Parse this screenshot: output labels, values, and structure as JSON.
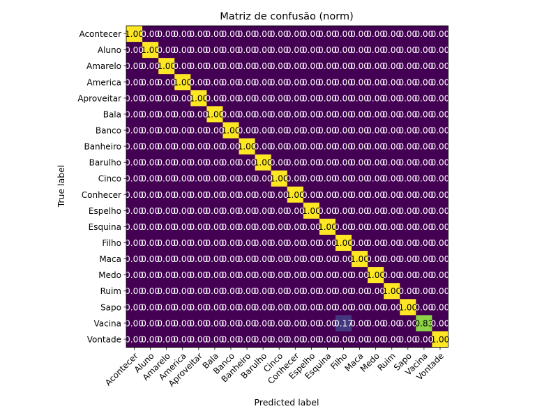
{
  "chart_data": {
    "type": "heatmap",
    "title": "Matriz de confusão (norm)",
    "xlabel": "Predicted label",
    "ylabel": "True label",
    "categories": [
      "Acontecer",
      "Aluno",
      "Amarelo",
      "America",
      "Aproveitar",
      "Bala",
      "Banco",
      "Banheiro",
      "Barulho",
      "Cinco",
      "Conhecer",
      "Espelho",
      "Esquina",
      "Filho",
      "Maca",
      "Medo",
      "Ruim",
      "Sapo",
      "Vacina",
      "Vontade"
    ],
    "value_range": [
      0,
      1
    ],
    "colormap": "viridis",
    "grid": false,
    "matrix": [
      [
        1,
        0,
        0,
        0,
        0,
        0,
        0,
        0,
        0,
        0,
        0,
        0,
        0,
        0,
        0,
        0,
        0,
        0,
        0,
        0
      ],
      [
        0,
        1,
        0,
        0,
        0,
        0,
        0,
        0,
        0,
        0,
        0,
        0,
        0,
        0,
        0,
        0,
        0,
        0,
        0,
        0
      ],
      [
        0,
        0,
        1,
        0,
        0,
        0,
        0,
        0,
        0,
        0,
        0,
        0,
        0,
        0,
        0,
        0,
        0,
        0,
        0,
        0
      ],
      [
        0,
        0,
        0,
        1,
        0,
        0,
        0,
        0,
        0,
        0,
        0,
        0,
        0,
        0,
        0,
        0,
        0,
        0,
        0,
        0
      ],
      [
        0,
        0,
        0,
        0,
        1,
        0,
        0,
        0,
        0,
        0,
        0,
        0,
        0,
        0,
        0,
        0,
        0,
        0,
        0,
        0
      ],
      [
        0,
        0,
        0,
        0,
        0,
        1,
        0,
        0,
        0,
        0,
        0,
        0,
        0,
        0,
        0,
        0,
        0,
        0,
        0,
        0
      ],
      [
        0,
        0,
        0,
        0,
        0,
        0,
        1,
        0,
        0,
        0,
        0,
        0,
        0,
        0,
        0,
        0,
        0,
        0,
        0,
        0
      ],
      [
        0,
        0,
        0,
        0,
        0,
        0,
        0,
        1,
        0,
        0,
        0,
        0,
        0,
        0,
        0,
        0,
        0,
        0,
        0,
        0
      ],
      [
        0,
        0,
        0,
        0,
        0,
        0,
        0,
        0,
        1,
        0,
        0,
        0,
        0,
        0,
        0,
        0,
        0,
        0,
        0,
        0
      ],
      [
        0,
        0,
        0,
        0,
        0,
        0,
        0,
        0,
        0,
        1,
        0,
        0,
        0,
        0,
        0,
        0,
        0,
        0,
        0,
        0
      ],
      [
        0,
        0,
        0,
        0,
        0,
        0,
        0,
        0,
        0,
        0,
        1,
        0,
        0,
        0,
        0,
        0,
        0,
        0,
        0,
        0
      ],
      [
        0,
        0,
        0,
        0,
        0,
        0,
        0,
        0,
        0,
        0,
        0,
        1,
        0,
        0,
        0,
        0,
        0,
        0,
        0,
        0
      ],
      [
        0,
        0,
        0,
        0,
        0,
        0,
        0,
        0,
        0,
        0,
        0,
        0,
        1,
        0,
        0,
        0,
        0,
        0,
        0,
        0
      ],
      [
        0,
        0,
        0,
        0,
        0,
        0,
        0,
        0,
        0,
        0,
        0,
        0,
        0,
        1,
        0,
        0,
        0,
        0,
        0,
        0
      ],
      [
        0,
        0,
        0,
        0,
        0,
        0,
        0,
        0,
        0,
        0,
        0,
        0,
        0,
        0,
        1,
        0,
        0,
        0,
        0,
        0
      ],
      [
        0,
        0,
        0,
        0,
        0,
        0,
        0,
        0,
        0,
        0,
        0,
        0,
        0,
        0,
        0,
        1,
        0,
        0,
        0,
        0
      ],
      [
        0,
        0,
        0,
        0,
        0,
        0,
        0,
        0,
        0,
        0,
        0,
        0,
        0,
        0,
        0,
        0,
        1,
        0,
        0,
        0
      ],
      [
        0,
        0,
        0,
        0,
        0,
        0,
        0,
        0,
        0,
        0,
        0,
        0,
        0,
        0,
        0,
        0,
        0,
        1,
        0,
        0
      ],
      [
        0,
        0,
        0,
        0,
        0,
        0,
        0,
        0,
        0,
        0,
        0,
        0,
        0,
        0.17,
        0,
        0,
        0,
        0,
        0.83,
        0
      ],
      [
        0,
        0,
        0,
        0,
        0,
        0,
        0,
        0,
        0,
        0,
        0,
        0,
        0,
        0,
        0,
        0,
        0,
        0,
        0,
        1
      ]
    ],
    "cell_labels": [
      [
        "1.00",
        "0.00",
        "0.00",
        "0.00",
        "0.00",
        "0.00",
        "0.00",
        "0.00",
        "0.00",
        "0.00",
        "0.00",
        "0.00",
        "0.00",
        "0.00",
        "0.00",
        "0.00",
        "0.00",
        "0.00",
        "0.00",
        "0.00"
      ],
      [
        "0.00",
        "1.00",
        "0.00",
        "0.00",
        "0.00",
        "0.00",
        "0.00",
        "0.00",
        "0.00",
        "0.00",
        "0.00",
        "0.00",
        "0.00",
        "0.00",
        "0.00",
        "0.00",
        "0.00",
        "0.00",
        "0.00",
        "0.00"
      ],
      [
        "0.00",
        "0.00",
        "1.00",
        "0.00",
        "0.00",
        "0.00",
        "0.00",
        "0.00",
        "0.00",
        "0.00",
        "0.00",
        "0.00",
        "0.00",
        "0.00",
        "0.00",
        "0.00",
        "0.00",
        "0.00",
        "0.00",
        "0.00"
      ],
      [
        "0.00",
        "0.00",
        "0.00",
        "1.00",
        "0.00",
        "0.00",
        "0.00",
        "0.00",
        "0.00",
        "0.00",
        "0.00",
        "0.00",
        "0.00",
        "0.00",
        "0.00",
        "0.00",
        "0.00",
        "0.00",
        "0.00",
        "0.00"
      ],
      [
        "0.00",
        "0.00",
        "0.00",
        "0.00",
        "1.00",
        "0.00",
        "0.00",
        "0.00",
        "0.00",
        "0.00",
        "0.00",
        "0.00",
        "0.00",
        "0.00",
        "0.00",
        "0.00",
        "0.00",
        "0.00",
        "0.00",
        "0.00"
      ],
      [
        "0.00",
        "0.00",
        "0.00",
        "0.00",
        "0.00",
        "1.00",
        "0.00",
        "0.00",
        "0.00",
        "0.00",
        "0.00",
        "0.00",
        "0.00",
        "0.00",
        "0.00",
        "0.00",
        "0.00",
        "0.00",
        "0.00",
        "0.00"
      ],
      [
        "0.00",
        "0.00",
        "0.00",
        "0.00",
        "0.00",
        "0.00",
        "1.00",
        "0.00",
        "0.00",
        "0.00",
        "0.00",
        "0.00",
        "0.00",
        "0.00",
        "0.00",
        "0.00",
        "0.00",
        "0.00",
        "0.00",
        "0.00"
      ],
      [
        "0.00",
        "0.00",
        "0.00",
        "0.00",
        "0.00",
        "0.00",
        "0.00",
        "1.00",
        "0.00",
        "0.00",
        "0.00",
        "0.00",
        "0.00",
        "0.00",
        "0.00",
        "0.00",
        "0.00",
        "0.00",
        "0.00",
        "0.00"
      ],
      [
        "0.00",
        "0.00",
        "0.00",
        "0.00",
        "0.00",
        "0.00",
        "0.00",
        "0.00",
        "1.00",
        "0.00",
        "0.00",
        "0.00",
        "0.00",
        "0.00",
        "0.00",
        "0.00",
        "0.00",
        "0.00",
        "0.00",
        "0.00"
      ],
      [
        "0.00",
        "0.00",
        "0.00",
        "0.00",
        "0.00",
        "0.00",
        "0.00",
        "0.00",
        "0.00",
        "1.00",
        "0.00",
        "0.00",
        "0.00",
        "0.00",
        "0.00",
        "0.00",
        "0.00",
        "0.00",
        "0.00",
        "0.00"
      ],
      [
        "0.00",
        "0.00",
        "0.00",
        "0.00",
        "0.00",
        "0.00",
        "0.00",
        "0.00",
        "0.00",
        "0.00",
        "1.00",
        "0.00",
        "0.00",
        "0.00",
        "0.00",
        "0.00",
        "0.00",
        "0.00",
        "0.00",
        "0.00"
      ],
      [
        "0.00",
        "0.00",
        "0.00",
        "0.00",
        "0.00",
        "0.00",
        "0.00",
        "0.00",
        "0.00",
        "0.00",
        "0.00",
        "1.00",
        "0.00",
        "0.00",
        "0.00",
        "0.00",
        "0.00",
        "0.00",
        "0.00",
        "0.00"
      ],
      [
        "0.00",
        "0.00",
        "0.00",
        "0.00",
        "0.00",
        "0.00",
        "0.00",
        "0.00",
        "0.00",
        "0.00",
        "0.00",
        "0.00",
        "1.00",
        "0.00",
        "0.00",
        "0.00",
        "0.00",
        "0.00",
        "0.00",
        "0.00"
      ],
      [
        "0.00",
        "0.00",
        "0.00",
        "0.00",
        "0.00",
        "0.00",
        "0.00",
        "0.00",
        "0.00",
        "0.00",
        "0.00",
        "0.00",
        "0.00",
        "1.00",
        "0.00",
        "0.00",
        "0.00",
        "0.00",
        "0.00",
        "0.00"
      ],
      [
        "0.00",
        "0.00",
        "0.00",
        "0.00",
        "0.00",
        "0.00",
        "0.00",
        "0.00",
        "0.00",
        "0.00",
        "0.00",
        "0.00",
        "0.00",
        "0.00",
        "1.00",
        "0.00",
        "0.00",
        "0.00",
        "0.00",
        "0.00"
      ],
      [
        "0.00",
        "0.00",
        "0.00",
        "0.00",
        "0.00",
        "0.00",
        "0.00",
        "0.00",
        "0.00",
        "0.00",
        "0.00",
        "0.00",
        "0.00",
        "0.00",
        "0.00",
        "1.00",
        "0.00",
        "0.00",
        "0.00",
        "0.00"
      ],
      [
        "0.00",
        "0.00",
        "0.00",
        "0.00",
        "0.00",
        "0.00",
        "0.00",
        "0.00",
        "0.00",
        "0.00",
        "0.00",
        "0.00",
        "0.00",
        "0.00",
        "0.00",
        "0.00",
        "1.00",
        "0.00",
        "0.00",
        "0.00"
      ],
      [
        "0.00",
        "0.00",
        "0.00",
        "0.00",
        "0.00",
        "0.00",
        "0.00",
        "0.00",
        "0.00",
        "0.00",
        "0.00",
        "0.00",
        "0.00",
        "0.00",
        "0.00",
        "0.00",
        "0.00",
        "1.00",
        "0.00",
        "0.00"
      ],
      [
        "0.00",
        "0.00",
        "0.00",
        "0.00",
        "0.00",
        "0.00",
        "0.00",
        "0.00",
        "0.00",
        "0.00",
        "0.00",
        "0.00",
        "0.00",
        "0.17",
        "0.00",
        "0.00",
        "0.00",
        "0.00",
        "0.83",
        "0.00"
      ],
      [
        "0.00",
        "0.00",
        "0.00",
        "0.00",
        "0.00",
        "0.00",
        "0.00",
        "0.00",
        "0.00",
        "0.00",
        "0.00",
        "0.00",
        "0.00",
        "0.00",
        "0.00",
        "0.00",
        "0.00",
        "0.00",
        "0.00",
        "1.00"
      ]
    ],
    "colors": {
      "low": "#440154",
      "high": "#fde725",
      "text_on_dark": "#ffffff",
      "text_on_light": "#000000",
      "axis": "#000000"
    }
  }
}
